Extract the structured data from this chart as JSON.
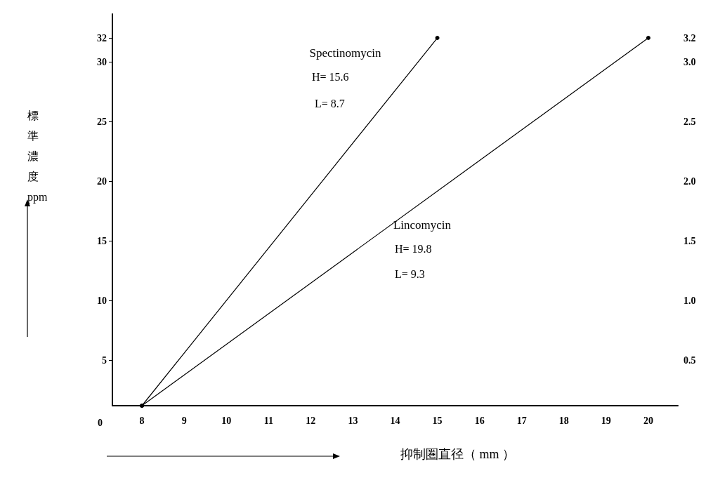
{
  "chart_data": {
    "type": "line",
    "xlabel": "抑制圏直径（ mm ）",
    "ylabel": "標準濃度 ppm",
    "series": [
      {
        "name": "Spectinomycin",
        "color": "#000000",
        "x": [
          8,
          15
        ],
        "values": [
          1.2,
          32
        ]
      },
      {
        "name": "Lincomycin",
        "color": "#000000",
        "x": [
          8,
          20
        ],
        "values": [
          0.12,
          3.2
        ],
        "axis": "y2"
      }
    ],
    "xlim": [
      7.3,
      20.7
    ],
    "xticks": [
      8,
      9,
      10,
      11,
      12,
      13,
      14,
      15,
      16,
      17,
      18,
      19,
      20
    ],
    "ylim": [
      1.2,
      34
    ],
    "yticks": [
      5,
      10,
      15,
      20,
      25,
      30,
      32
    ],
    "y2lim": [
      0.12,
      3.4
    ],
    "y2ticks": [
      0.5,
      {
        "value": 1,
        "label": "1.0"
      },
      1.5,
      {
        "value": 2,
        "label": "2.0"
      },
      2.5,
      {
        "value": 3,
        "label": "3.0"
      },
      3.2
    ],
    "annotations": [
      "0",
      "H= 15.6",
      "L= 8.7",
      "H= 19.8",
      "L= 9.3"
    ],
    "marker": "circle",
    "line_style": "solid",
    "grid": false,
    "legend": false
  }
}
